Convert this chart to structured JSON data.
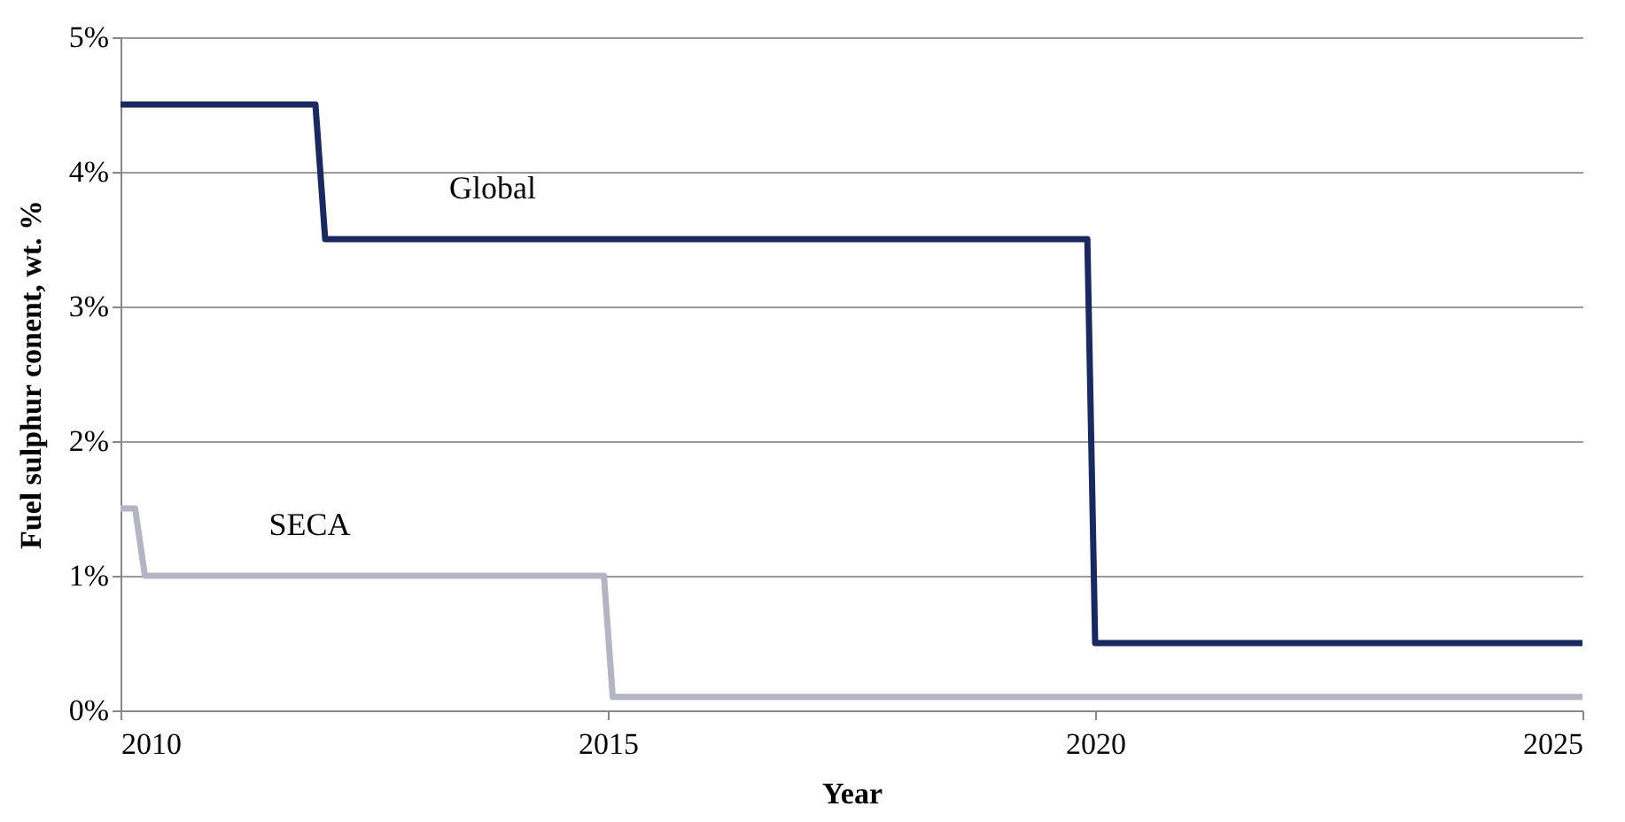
{
  "chart_data": {
    "type": "line",
    "xlabel": "Year",
    "ylabel": "Fuel  sulphur conent, wt. %",
    "series": [
      {
        "name": "Global",
        "color": "#1b2a5e",
        "x": [
          2010,
          2012,
          2012.1,
          2019.92,
          2020,
          2025
        ],
        "values": [
          4.5,
          4.5,
          3.5,
          3.5,
          0.5,
          0.5
        ]
      },
      {
        "name": "SECA",
        "color": "#b3b5c3",
        "x": [
          2010,
          2010.15,
          2010.25,
          2014.96,
          2015.05,
          2025
        ],
        "values": [
          1.5,
          1.5,
          1.0,
          1.0,
          0.1,
          0.1
        ]
      }
    ],
    "xlim": [
      2010,
      2025
    ],
    "xticks": [
      2010,
      2015,
      2020,
      2025
    ],
    "ylim": [
      0,
      5
    ],
    "yticks": [
      {
        "value": 0,
        "label": "0%"
      },
      {
        "value": 1,
        "label": "1%"
      },
      {
        "value": 2,
        "label": "2%"
      },
      {
        "value": 3,
        "label": "3%"
      },
      {
        "value": 4,
        "label": "4%"
      },
      {
        "value": 5,
        "label": "5%"
      }
    ],
    "grid": "y",
    "legend": false,
    "line_style": "solid",
    "marker": "none"
  }
}
